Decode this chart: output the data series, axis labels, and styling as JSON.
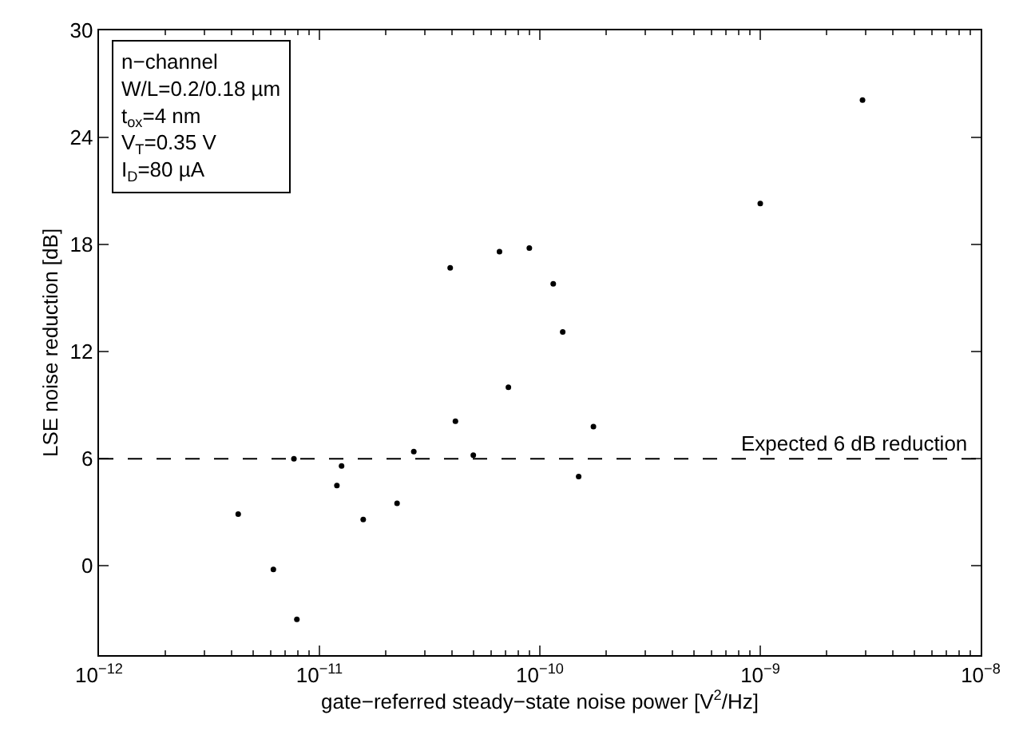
{
  "chart_data": {
    "type": "scatter",
    "xlabel": "gate−referred steady−state noise power [V$^{2}$/Hz]",
    "ylabel": "LSE noise reduction [dB]",
    "log": "x",
    "xlim": [
      1e-12,
      1e-08
    ],
    "xticks": [
      {
        "value": 1e-12,
        "label": "10$^{−12}$"
      },
      {
        "value": 1e-11,
        "label": "10$^{−11}$"
      },
      {
        "value": 1e-10,
        "label": "10$^{−10}$"
      },
      {
        "value": 1e-09,
        "label": "10$^{−9}$"
      },
      {
        "value": 1e-08,
        "label": "10$^{−8}$"
      }
    ],
    "ylim": [
      -5,
      30
    ],
    "yticks": [
      0,
      6,
      12,
      18,
      24,
      30
    ],
    "grid": false,
    "marker": "circle",
    "x": [
      4.28e-12,
      6.18e-12,
      7.9e-12,
      7.66e-12,
      1.2e-11,
      1.26e-11,
      1.58e-11,
      2.25e-11,
      2.68e-11,
      3.92e-11,
      4.14e-11,
      4.99e-11,
      6.56e-11,
      7.2e-11,
      8.96e-11,
      1.15e-10,
      1.27e-10,
      1.75e-10,
      1.5e-10,
      1e-09,
      2.91e-09
    ],
    "series": [
      {
        "color": "#000000",
        "values": [
          2.9,
          -0.2,
          -3.0,
          6.0,
          4.5,
          5.6,
          2.6,
          3.5,
          6.4,
          16.7,
          8.1,
          6.2,
          17.6,
          10.0,
          17.8,
          15.8,
          13.1,
          7.8,
          5.0,
          20.3,
          26.1
        ]
      }
    ],
    "ref_lines": [
      {
        "axis": "y",
        "value": 6,
        "label": "Expected 6 dB reduction",
        "color": "#000000",
        "line_style": "dashed"
      }
    ],
    "annotations": [
      "n−channel",
      "W/L=0.2/0.18 µm",
      "t$_{ox}$=4 nm",
      "V$_{T}$=0.35 V",
      "I$_{D}$=80 µA"
    ]
  }
}
